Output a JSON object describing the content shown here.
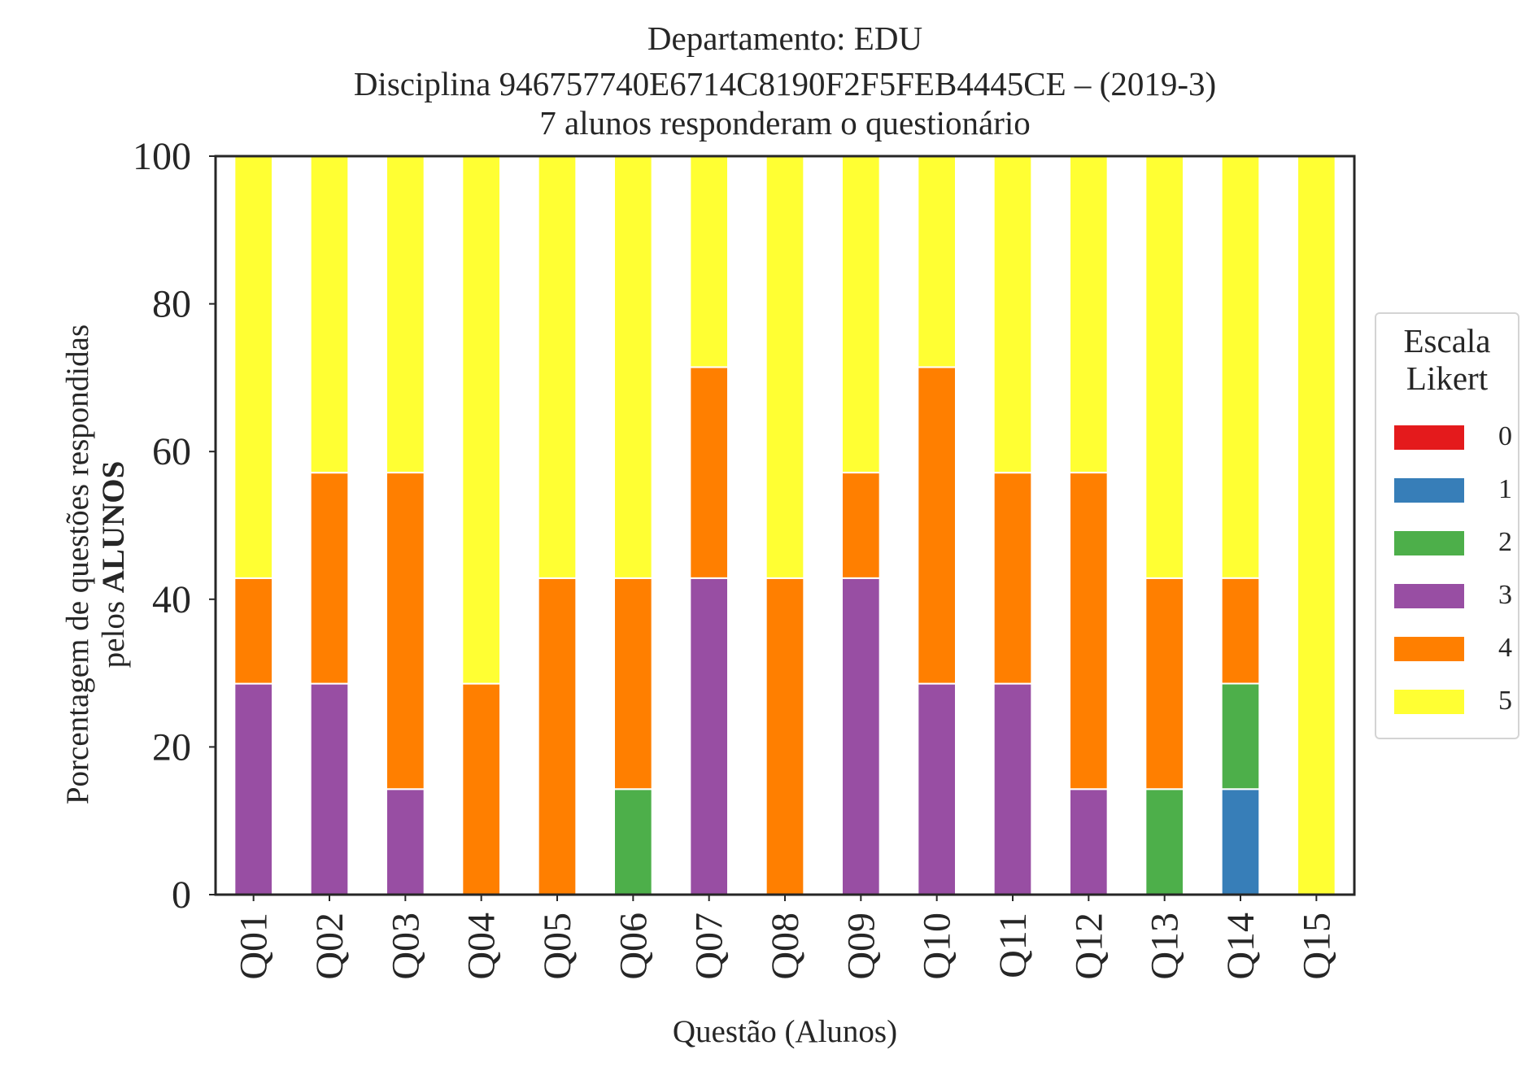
{
  "chart_data": {
    "type": "bar",
    "stacked": true,
    "title": [
      "Departamento: EDU",
      "Disciplina 946757740E6714C8190F2F5FEB4445CE – (2019-3)",
      "7 alunos responderam o questionário"
    ],
    "ylabel_line1": "Porcentagem de questões respondidas",
    "ylabel_line2_prefix": "pelos ",
    "ylabel_line2_bold": "ALUNOS",
    "xlabel": "Questão (Alunos)",
    "ylim": [
      0,
      100
    ],
    "yticks": [
      0,
      20,
      40,
      60,
      80,
      100
    ],
    "grid": false,
    "legend_title": [
      "Escala",
      "Likert"
    ],
    "legend_position": "center-right-outside",
    "categories": [
      "Q01",
      "Q02",
      "Q03",
      "Q04",
      "Q05",
      "Q06",
      "Q07",
      "Q08",
      "Q09",
      "Q10",
      "Q11",
      "Q12",
      "Q13",
      "Q14",
      "Q15"
    ],
    "series": [
      {
        "name": "0",
        "color": "#e41a1c",
        "values": [
          0,
          0,
          0,
          0,
          0,
          0,
          0,
          0,
          0,
          0,
          0,
          0,
          0,
          0,
          0
        ]
      },
      {
        "name": "1",
        "color": "#377eb8",
        "values": [
          0,
          0,
          0,
          0,
          0,
          0,
          0,
          0,
          0,
          0,
          0,
          0,
          0,
          14.29,
          0
        ]
      },
      {
        "name": "2",
        "color": "#4daf4a",
        "values": [
          0,
          0,
          0,
          0,
          0,
          14.29,
          0,
          0,
          0,
          0,
          0,
          0,
          14.29,
          14.29,
          0
        ]
      },
      {
        "name": "3",
        "color": "#984ea3",
        "values": [
          28.57,
          28.57,
          14.29,
          0,
          0,
          0,
          42.86,
          0,
          42.86,
          28.57,
          28.57,
          14.29,
          0,
          0,
          0
        ]
      },
      {
        "name": "4",
        "color": "#ff7f00",
        "values": [
          14.29,
          28.57,
          42.86,
          28.57,
          42.86,
          28.57,
          28.57,
          42.86,
          14.29,
          42.86,
          28.57,
          42.86,
          28.57,
          14.29,
          0
        ]
      },
      {
        "name": "5",
        "color": "#ffff33",
        "values": [
          57.14,
          42.86,
          42.86,
          71.43,
          57.14,
          57.14,
          28.57,
          57.14,
          42.86,
          28.57,
          42.86,
          42.86,
          57.14,
          57.14,
          100
        ]
      }
    ]
  }
}
